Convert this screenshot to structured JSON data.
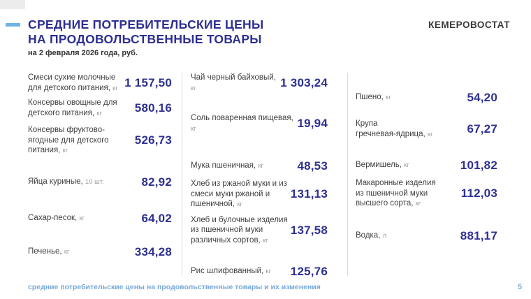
{
  "header": {
    "title_line1": "СРЕДНИЕ ПОТРЕБИТЕЛЬСКИЕ ЦЕНЫ",
    "title_line2": "НА ПРОДОВОЛЬСТВЕННЫЕ ТОВАРЫ",
    "subtitle": "на 2 февраля 2026 года, руб.",
    "logo": "КЕМЕРОВОСТАТ"
  },
  "colors": {
    "accent_bar": "#6fb3e4",
    "title": "#2d2f92",
    "price": "#2e3192",
    "footer": "#78a9da",
    "divider": "#dcdcdc"
  },
  "columns": [
    {
      "items": [
        {
          "name": "Смеси сухие молочные для детского питания,",
          "unit": "кг",
          "price": "1 157,50"
        },
        {
          "name": "Консервы овощные для детского питания,",
          "unit": "кг",
          "price": "580,16"
        },
        {
          "name": "Консервы фруктово-ягодные для детского питания,",
          "unit": "кг",
          "price": "526,73"
        },
        {
          "name": "Яйца куриные,",
          "unit": "10 шт.",
          "price": "82,92"
        },
        {
          "name": "Сахар-песок,",
          "unit": "кг",
          "price": "64,02"
        },
        {
          "name": "Печенье,",
          "unit": "кг",
          "price": "334,28"
        }
      ]
    },
    {
      "items": [
        {
          "name": "Чай черный байховый,",
          "unit": "кг",
          "price": "1 303,24"
        },
        {
          "name": "Соль поваренная пищевая,",
          "unit": "кг",
          "price": "19,94"
        },
        {
          "name": "Мука пшеничная,",
          "unit": "кг",
          "price": "48,53"
        },
        {
          "name": "Хлеб из ржаной муки и из смеси муки ржаной и пшеничной,",
          "unit": "кг",
          "price": "131,13"
        },
        {
          "name": "Хлеб и булочные изделия из пшеничной муки различных сортов,",
          "unit": "кг",
          "price": "137,58"
        },
        {
          "name": "Рис шлифованный,",
          "unit": "кг",
          "price": "125,76"
        }
      ]
    },
    {
      "items": [
        {
          "name": "Пшено,",
          "unit": "кг",
          "price": "54,20"
        },
        {
          "name": "Крупа гречневая‑ядрица,",
          "unit": "кг",
          "price": "67,27"
        },
        {
          "name": "Вермишель,",
          "unit": "кг",
          "price": "101,82"
        },
        {
          "name": "Макаронные изделия из пшеничной муки высшего сорта,",
          "unit": "кг",
          "price": "112,03"
        },
        {
          "name": "Водка,",
          "unit": "л",
          "price": "881,17"
        }
      ]
    }
  ],
  "footer": {
    "caption": "средние потребительские цены на продовольственные товары и их изменения",
    "page_number": "5"
  }
}
